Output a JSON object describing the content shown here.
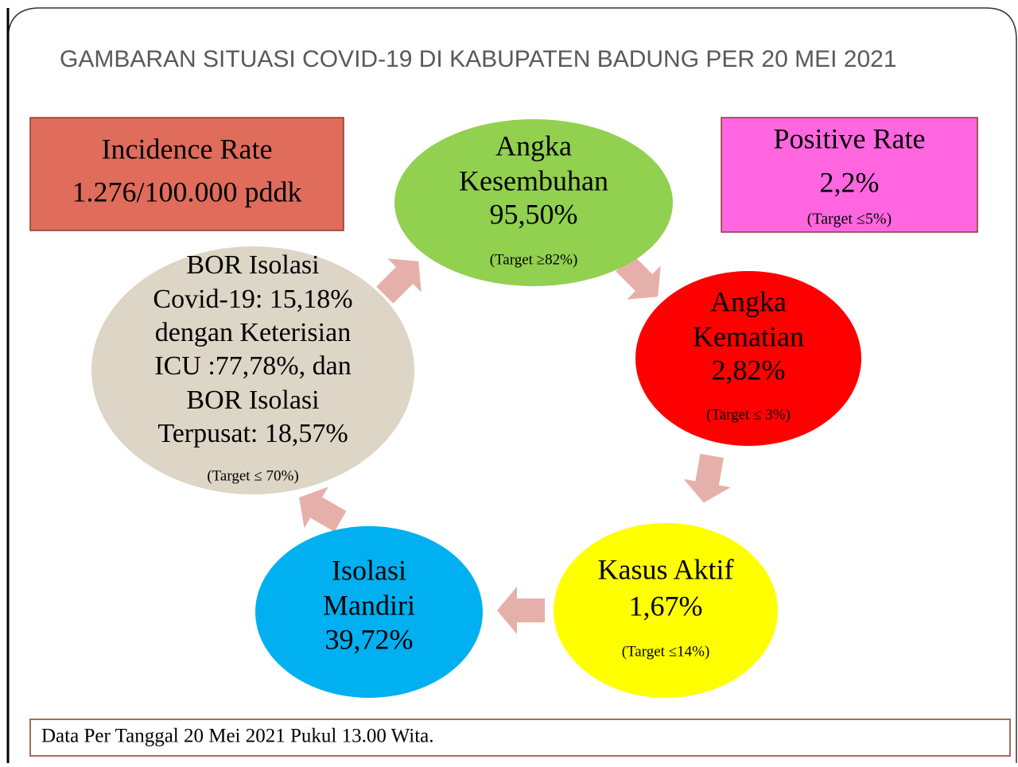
{
  "title": "GAMBARAN SITUASI COVID-19 DI KABUPATEN BADUNG PER 20 MEI 2021",
  "incidence": {
    "label": "Incidence Rate",
    "value": "1.276/100.000 pddk"
  },
  "positive": {
    "label": "Positive Rate",
    "value": "2,2%",
    "target": "(Target ≤5%)"
  },
  "nodes": [
    {
      "lines": [
        "Angka",
        "Kesembuhan",
        "95,50%"
      ],
      "target": "(Target ≥82%)"
    },
    {
      "lines": [
        "Angka",
        "Kematian",
        "2,82%"
      ],
      "target": "(Target ≤ 3%)"
    },
    {
      "lines": [
        "Kasus Aktif",
        "1,67%"
      ],
      "target": "(Target ≤14%)"
    },
    {
      "lines": [
        "Isolasi",
        "Mandiri",
        "39,72%"
      ]
    },
    {
      "lines": [
        "BOR Isolasi",
        "Covid-19: 15,18%",
        "dengan Keterisian",
        "ICU :77,78%, dan",
        "BOR Isolasi",
        "Terpusat: 18,57%"
      ],
      "target": "(Target ≤ 70%)"
    }
  ],
  "footer": "Data Per Tanggal 20 Mei 2021 Pukul 13.00 Wita."
}
